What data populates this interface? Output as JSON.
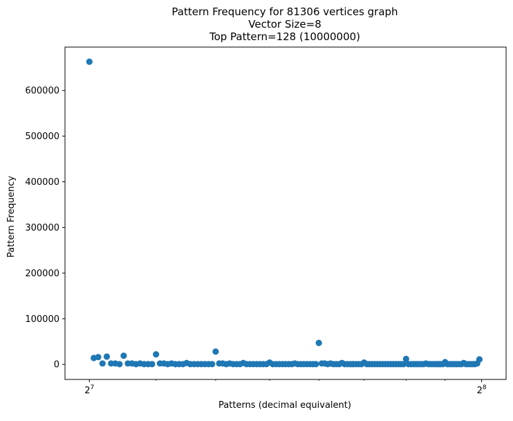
{
  "chart_data": {
    "type": "scatter",
    "title": [
      "Pattern Frequency for 81306 vertices graph",
      "Vector Size=8",
      "Top Pattern=128 (10000000)"
    ],
    "xlabel": "Patterns (decimal equivalent)",
    "ylabel": "Pattern Frequency",
    "x_scale": "log2",
    "xlim": [
      122.6,
      267.3
    ],
    "ylim": [
      -33000,
      695000
    ],
    "grid": false,
    "legend": "none",
    "marker_color": "#1f77b4",
    "x_ticks": [
      {
        "value": 128,
        "base": "2",
        "exp": "7"
      },
      {
        "value": 256,
        "base": "2",
        "exp": "8"
      }
    ],
    "y_ticks": [
      {
        "value": 0,
        "label": "0"
      },
      {
        "value": 100000,
        "label": "100000"
      },
      {
        "value": 200000,
        "label": "200000"
      },
      {
        "value": 300000,
        "label": "300000"
      },
      {
        "value": 400000,
        "label": "400000"
      },
      {
        "value": 500000,
        "label": "500000"
      },
      {
        "value": 600000,
        "label": "600000"
      }
    ],
    "x": [
      128,
      129,
      130,
      131,
      132,
      133,
      134,
      135,
      136,
      137,
      138,
      139,
      140,
      141,
      142,
      143,
      144,
      145,
      146,
      147,
      148,
      149,
      150,
      151,
      152,
      153,
      154,
      155,
      156,
      157,
      158,
      159,
      160,
      161,
      162,
      163,
      164,
      165,
      166,
      167,
      168,
      169,
      170,
      171,
      172,
      173,
      174,
      175,
      176,
      177,
      178,
      179,
      180,
      181,
      182,
      183,
      184,
      185,
      186,
      187,
      188,
      189,
      190,
      191,
      192,
      193,
      194,
      195,
      196,
      197,
      198,
      199,
      200,
      201,
      202,
      203,
      204,
      205,
      206,
      207,
      208,
      209,
      210,
      211,
      212,
      213,
      214,
      215,
      216,
      217,
      218,
      219,
      220,
      221,
      222,
      223,
      224,
      225,
      226,
      227,
      228,
      229,
      230,
      231,
      232,
      233,
      234,
      235,
      236,
      237,
      238,
      239,
      240,
      241,
      242,
      243,
      244,
      245,
      246,
      247,
      248,
      249,
      250,
      251,
      252,
      253,
      254,
      255
    ],
    "y": [
      663000,
      14000,
      16000,
      2000,
      17000,
      2000,
      2000,
      500,
      19000,
      2000,
      2000,
      500,
      2000,
      500,
      500,
      500,
      22000,
      2000,
      2000,
      500,
      2000,
      500,
      500,
      500,
      3000,
      500,
      500,
      500,
      500,
      500,
      500,
      500,
      28000,
      2000,
      2000,
      500,
      2000,
      500,
      500,
      500,
      3000,
      500,
      500,
      500,
      500,
      500,
      500,
      500,
      4000,
      500,
      500,
      500,
      500,
      500,
      500,
      500,
      2000,
      500,
      500,
      500,
      500,
      500,
      500,
      500,
      47000,
      2000,
      2000,
      500,
      2000,
      500,
      500,
      500,
      3000,
      500,
      500,
      500,
      500,
      500,
      500,
      500,
      4000,
      500,
      500,
      500,
      500,
      500,
      500,
      500,
      500,
      500,
      500,
      500,
      500,
      500,
      500,
      500,
      12000,
      500,
      500,
      500,
      500,
      500,
      500,
      500,
      2000,
      500,
      500,
      500,
      500,
      500,
      500,
      500,
      5000,
      500,
      500,
      500,
      500,
      500,
      500,
      500,
      3000,
      500,
      500,
      500,
      500,
      500,
      2000,
      11000
    ]
  }
}
